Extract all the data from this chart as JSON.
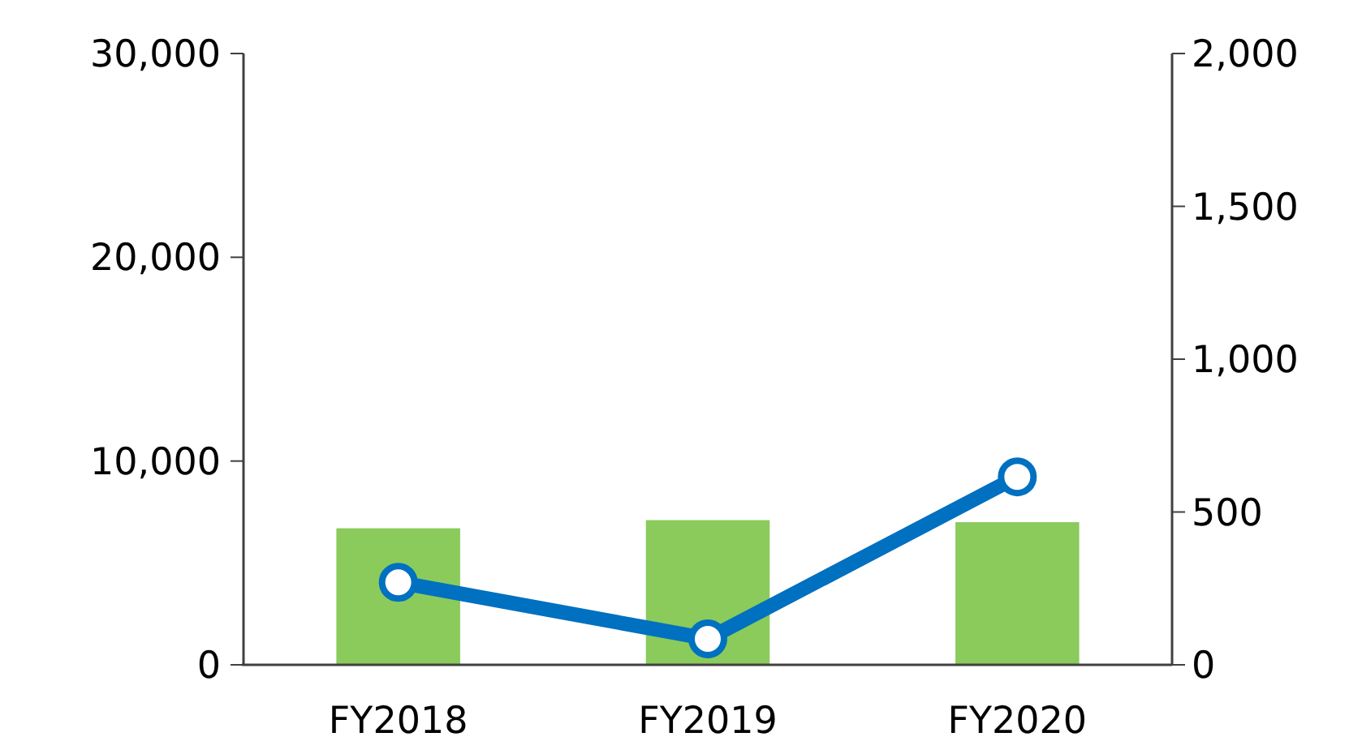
{
  "chart_data": {
    "type": "bar",
    "categories": [
      "FY2018",
      "FY2019",
      "FY2020"
    ],
    "series": [
      {
        "color": "#8acb5c",
        "values": [
          6700,
          7100,
          7000
        ]
      },
      {
        "type": "line",
        "axis": "y2",
        "color": "#0070c0",
        "values": [
          270,
          85,
          615
        ],
        "marker": "circle"
      }
    ],
    "ylim": [
      0,
      30000
    ],
    "yticks": [
      {
        "value": 0,
        "label": "0"
      },
      {
        "value": 10000,
        "label": "10,000"
      },
      {
        "value": 20000,
        "label": "20,000"
      },
      {
        "value": 30000,
        "label": "30,000"
      }
    ],
    "y2lim": [
      0,
      2000
    ],
    "y2ticks": [
      {
        "value": 0,
        "label": "0"
      },
      {
        "value": 500,
        "label": "500"
      },
      {
        "value": 1000,
        "label": "1,000"
      },
      {
        "value": 1500,
        "label": "1,500"
      },
      {
        "value": 2000,
        "label": "2,000"
      }
    ],
    "grid": false
  }
}
